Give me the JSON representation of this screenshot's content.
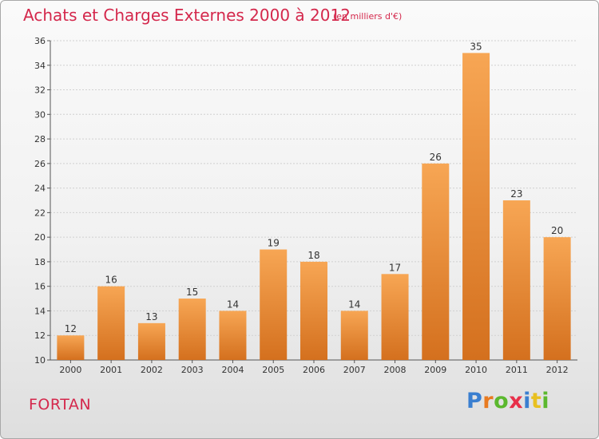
{
  "title": "Achats et Charges Externes 2000 à 2012",
  "unit": "(en milliers d'€)",
  "commune": "FORTAN",
  "logo": {
    "text": "Proxiti",
    "colors": [
      "#3a7fd0",
      "#e87a20",
      "#5bb82e",
      "#e8304a",
      "#3a7fd0",
      "#e8c020",
      "#5bb82e"
    ]
  },
  "colors": {
    "bar_top": "#f7a654",
    "bar_bottom": "#d4701e",
    "title": "#d4284c"
  },
  "chart_data": {
    "type": "bar",
    "title": "Achats et Charges Externes 2000 à 2012",
    "categories": [
      "2000",
      "2001",
      "2002",
      "2003",
      "2004",
      "2005",
      "2006",
      "2007",
      "2008",
      "2009",
      "2010",
      "2011",
      "2012"
    ],
    "values": [
      12,
      16,
      13,
      15,
      14,
      19,
      18,
      14,
      17,
      26,
      35,
      23,
      20
    ],
    "ylim": [
      10,
      36
    ],
    "yticks": [
      10,
      12,
      14,
      16,
      18,
      20,
      22,
      24,
      26,
      28,
      30,
      32,
      34,
      36
    ],
    "grid": true,
    "legend": "none"
  }
}
